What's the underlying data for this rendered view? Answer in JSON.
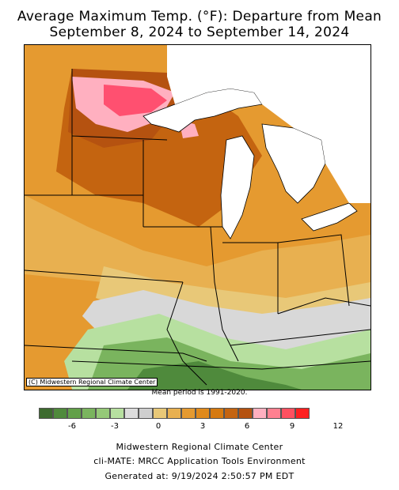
{
  "title_line1": "Average Maximum Temp. (°F): Departure from Mean",
  "title_line2": "September 8, 2024 to September 14, 2024",
  "copyright": "(C) Midwestern Regional Climate Center",
  "mean_period": "Mean period is 1991-2020.",
  "legend": {
    "colors": [
      "#3d6b2f",
      "#4f8a3c",
      "#62a049",
      "#7ab45e",
      "#95c878",
      "#b7e0a0",
      "#dcdcdc",
      "#cfcfcf",
      "#e8c878",
      "#e8b050",
      "#e59a30",
      "#e08a1c",
      "#d67a10",
      "#c46410",
      "#b55210",
      "#ffb0c0",
      "#ff8090",
      "#ff5060",
      "#ff2020"
    ],
    "tick_labels": [
      "-6",
      "-3",
      "0",
      "3",
      "6",
      "9",
      "12"
    ]
  },
  "footer": {
    "line1": "Midwestern Regional Climate Center",
    "line2": "cli-MATE: MRCC Application Tools Environment",
    "line3": "Generated at: 9/19/2024 2:50:57 PM EDT"
  }
}
